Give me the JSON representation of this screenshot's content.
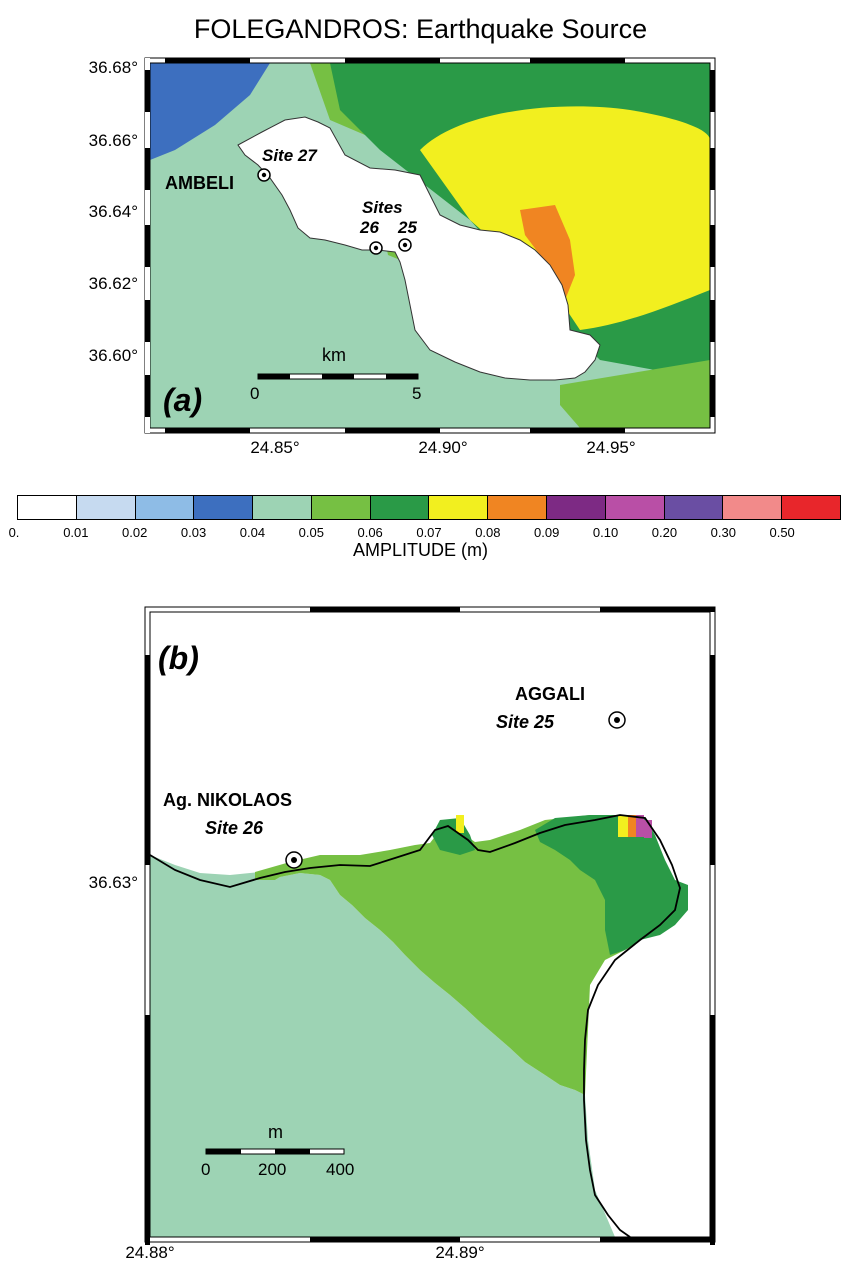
{
  "title": "FOLEGANDROS:  Earthquake Source",
  "map_a": {
    "panel_label": "(a)",
    "lat_ticks": [
      "36.68°",
      "36.66°",
      "36.64°",
      "36.62°",
      "36.60°"
    ],
    "lon_ticks": [
      "24.85°",
      "24.90°",
      "24.95°"
    ],
    "places": {
      "ambeli": "AMBELI"
    },
    "sites": {
      "site27": "Site 27",
      "sites_label": "Sites",
      "s26": "26",
      "s25": "25"
    },
    "scale": {
      "unit": "km",
      "left": "0",
      "right": "5"
    }
  },
  "colorbar": {
    "label": "AMPLITUDE (m)",
    "ticks": [
      "0.",
      "0.01",
      "0.02",
      "0.03",
      "0.04",
      "0.05",
      "0.06",
      "0.07",
      "0.08",
      "0.09",
      "0.10",
      "0.20",
      "0.30",
      "0.50"
    ],
    "colors": [
      "#ffffff",
      "#c6daf0",
      "#8ebce6",
      "#3d6fbf",
      "#9dd3b4",
      "#76c043",
      "#2a9a47",
      "#f2ef1f",
      "#f08522",
      "#7d2a84",
      "#b94fa6",
      "#6a4ea3",
      "#f28a8a",
      "#e8262b"
    ]
  },
  "map_b": {
    "panel_label": "(b)",
    "lat_ticks": [
      "36.63°"
    ],
    "lon_ticks": [
      "24.88°",
      "24.89°"
    ],
    "places": {
      "aggali": "AGGALI",
      "nikolaos": "Ag. NIKOLAOS"
    },
    "sites": {
      "site25": "Site 25",
      "site26": "Site 26"
    },
    "scale": {
      "unit": "m",
      "t0": "0",
      "t1": "200",
      "t2": "400"
    }
  }
}
